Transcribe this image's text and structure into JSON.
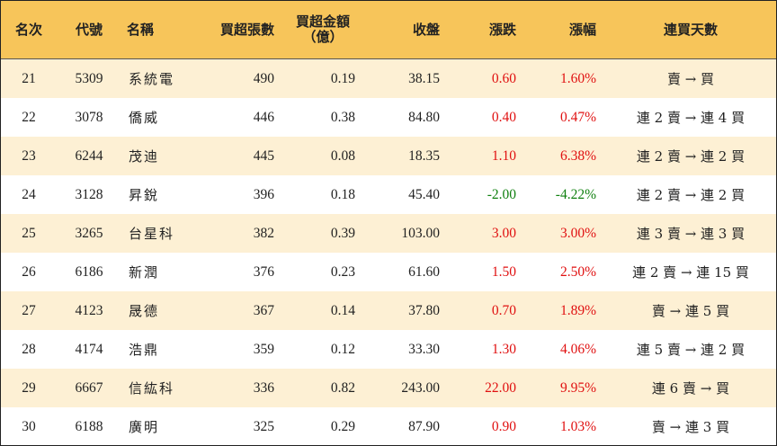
{
  "headers": {
    "rank": "名次",
    "code": "代號",
    "name": "名稱",
    "net_buy_lots": "買超張數",
    "net_buy_amount_line1": "買超金額",
    "net_buy_amount_line2": "（億）",
    "close": "收盤",
    "change": "漲跌",
    "change_pct": "漲幅",
    "streak": "連買天數"
  },
  "colors": {
    "header_bg": "#f7c55a",
    "odd_row_bg": "#fdf0d4",
    "up": "#e01010",
    "down": "#108010"
  },
  "rows": [
    {
      "rank": "21",
      "code": "5309",
      "name": "系統電",
      "lots": "490",
      "amount": "0.19",
      "close": "38.15",
      "change": "0.60",
      "pct": "1.60%",
      "dir": "up",
      "streak": "賣 → 買"
    },
    {
      "rank": "22",
      "code": "3078",
      "name": "僑威",
      "lots": "446",
      "amount": "0.38",
      "close": "84.80",
      "change": "0.40",
      "pct": "0.47%",
      "dir": "up",
      "streak": "連 2 賣 → 連 4 買"
    },
    {
      "rank": "23",
      "code": "6244",
      "name": "茂迪",
      "lots": "445",
      "amount": "0.08",
      "close": "18.35",
      "change": "1.10",
      "pct": "6.38%",
      "dir": "up",
      "streak": "連 2 賣 → 連 2 買"
    },
    {
      "rank": "24",
      "code": "3128",
      "name": "昇銳",
      "lots": "396",
      "amount": "0.18",
      "close": "45.40",
      "change": "-2.00",
      "pct": "-4.22%",
      "dir": "down",
      "streak": "連 2 賣 → 連 2 買"
    },
    {
      "rank": "25",
      "code": "3265",
      "name": "台星科",
      "lots": "382",
      "amount": "0.39",
      "close": "103.00",
      "change": "3.00",
      "pct": "3.00%",
      "dir": "up",
      "streak": "連 3 賣 → 連 3 買"
    },
    {
      "rank": "26",
      "code": "6186",
      "name": "新潤",
      "lots": "376",
      "amount": "0.23",
      "close": "61.60",
      "change": "1.50",
      "pct": "2.50%",
      "dir": "up",
      "streak": "連 2 賣 → 連 15 買"
    },
    {
      "rank": "27",
      "code": "4123",
      "name": "晟德",
      "lots": "367",
      "amount": "0.14",
      "close": "37.80",
      "change": "0.70",
      "pct": "1.89%",
      "dir": "up",
      "streak": "賣 → 連 5 買"
    },
    {
      "rank": "28",
      "code": "4174",
      "name": "浩鼎",
      "lots": "359",
      "amount": "0.12",
      "close": "33.30",
      "change": "1.30",
      "pct": "4.06%",
      "dir": "up",
      "streak": "連 5 賣 → 連 2 買"
    },
    {
      "rank": "29",
      "code": "6667",
      "name": "信紘科",
      "lots": "336",
      "amount": "0.82",
      "close": "243.00",
      "change": "22.00",
      "pct": "9.95%",
      "dir": "up",
      "streak": "連 6 賣 → 買"
    },
    {
      "rank": "30",
      "code": "6188",
      "name": "廣明",
      "lots": "325",
      "amount": "0.29",
      "close": "87.90",
      "change": "0.90",
      "pct": "1.03%",
      "dir": "up",
      "streak": "賣 → 連 3 買"
    }
  ]
}
